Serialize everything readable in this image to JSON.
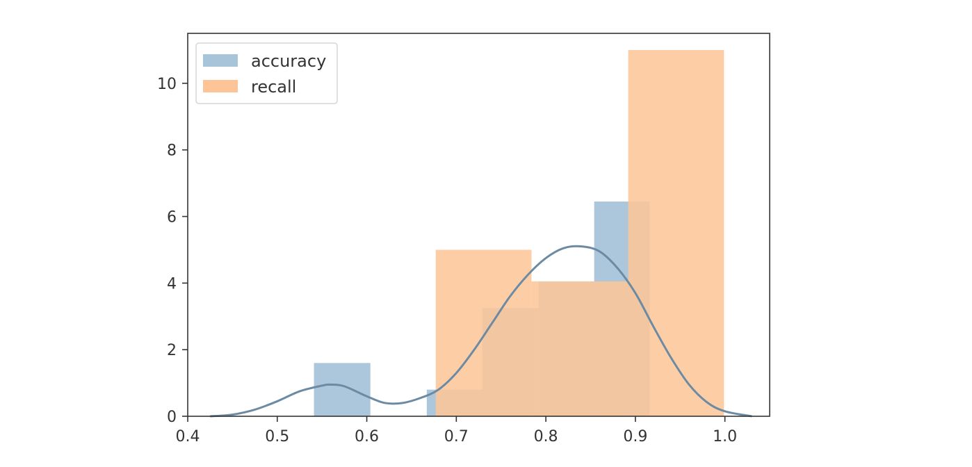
{
  "chart_data": {
    "type": "bar",
    "title": "",
    "xlabel": "",
    "ylabel": "",
    "xlim": [
      0.4,
      1.05
    ],
    "ylim": [
      0,
      11.5
    ],
    "x_ticks": [
      0.4,
      0.5,
      0.6,
      0.7,
      0.8,
      0.9,
      1.0
    ],
    "x_tick_labels": [
      "0.4",
      "0.5",
      "0.6",
      "0.7",
      "0.8",
      "0.9",
      "1.0"
    ],
    "y_ticks": [
      0,
      2,
      4,
      6,
      8,
      10
    ],
    "y_tick_labels": [
      "0",
      "2",
      "4",
      "6",
      "8",
      "10"
    ],
    "grid": false,
    "legend": {
      "position": "top-left",
      "entries": [
        "accuracy",
        "recall"
      ]
    },
    "series": [
      {
        "name": "accuracy",
        "color": "#a8c4d9",
        "bins": [
          {
            "x0": 0.541,
            "x1": 0.604,
            "value": 1.6
          },
          {
            "x0": 0.604,
            "x1": 0.667,
            "value": 0.0
          },
          {
            "x0": 0.667,
            "x1": 0.729,
            "value": 0.8
          },
          {
            "x0": 0.729,
            "x1": 0.792,
            "value": 3.25
          },
          {
            "x0": 0.792,
            "x1": 0.854,
            "value": 4.05
          },
          {
            "x0": 0.854,
            "x1": 0.916,
            "value": 6.45
          }
        ],
        "kde": {
          "color": "#6d8aa3",
          "x": [
            0.425,
            0.45,
            0.475,
            0.5,
            0.525,
            0.55,
            0.56,
            0.575,
            0.6,
            0.62,
            0.64,
            0.66,
            0.68,
            0.7,
            0.72,
            0.74,
            0.76,
            0.78,
            0.8,
            0.82,
            0.84,
            0.86,
            0.88,
            0.9,
            0.92,
            0.94,
            0.96,
            0.98,
            1.0,
            1.03
          ],
          "y": [
            0.0,
            0.05,
            0.2,
            0.45,
            0.75,
            0.92,
            0.95,
            0.9,
            0.6,
            0.4,
            0.4,
            0.55,
            0.8,
            1.3,
            2.0,
            2.8,
            3.6,
            4.25,
            4.75,
            5.05,
            5.1,
            4.95,
            4.45,
            3.7,
            2.7,
            1.75,
            0.95,
            0.42,
            0.15,
            0.0
          ]
        }
      },
      {
        "name": "recall",
        "color": "#fdc597",
        "bins": [
          {
            "x0": 0.677,
            "x1": 0.784,
            "value": 5.0
          },
          {
            "x0": 0.784,
            "x1": 0.892,
            "value": 4.05
          },
          {
            "x0": 0.892,
            "x1": 0.999,
            "value": 11.0
          }
        ]
      }
    ]
  }
}
